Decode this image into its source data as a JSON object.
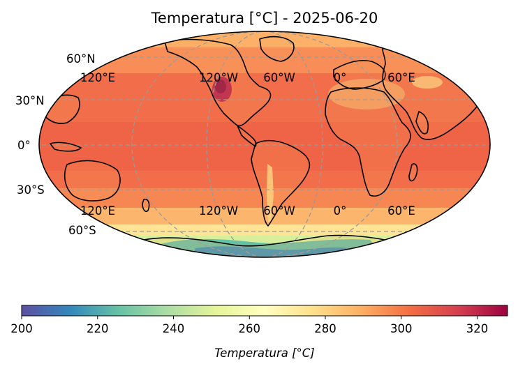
{
  "figure": {
    "title": "Temperatura [°C] - 2025-06-20"
  },
  "map": {
    "projection": "Mollweide",
    "lat_labels": {
      "n60": "60°N",
      "n30": "30°N",
      "eq": "0°",
      "s30": "30°S",
      "s60": "60°S"
    },
    "lon_labels": {
      "e120": "120°E",
      "w120": "120°W",
      "w60": "60°W",
      "p0": "0°",
      "e60": "60°E"
    },
    "colormap": "Spectral_r",
    "colors": {
      "ocean_main": "#f26d4a",
      "ocean_warm": "#ec5f43",
      "mid_lat": "#fdb768",
      "cool": "#fee494",
      "antarctic": "#66c2a5",
      "hot_land": "#9e0142",
      "coastline": "#000000",
      "graticule": "#9a9a9a"
    }
  },
  "colorbar": {
    "label": "Temperatura [°C]",
    "min": 200,
    "max": 328,
    "ticks": [
      "200",
      "220",
      "240",
      "260",
      "280",
      "300",
      "320"
    ],
    "stops": [
      "#5e4fa2",
      "#3288bd",
      "#66c2a5",
      "#abdda4",
      "#e6f598",
      "#ffffbf",
      "#fee08b",
      "#fdae61",
      "#f46d43",
      "#d53e4f",
      "#9e0142"
    ]
  }
}
